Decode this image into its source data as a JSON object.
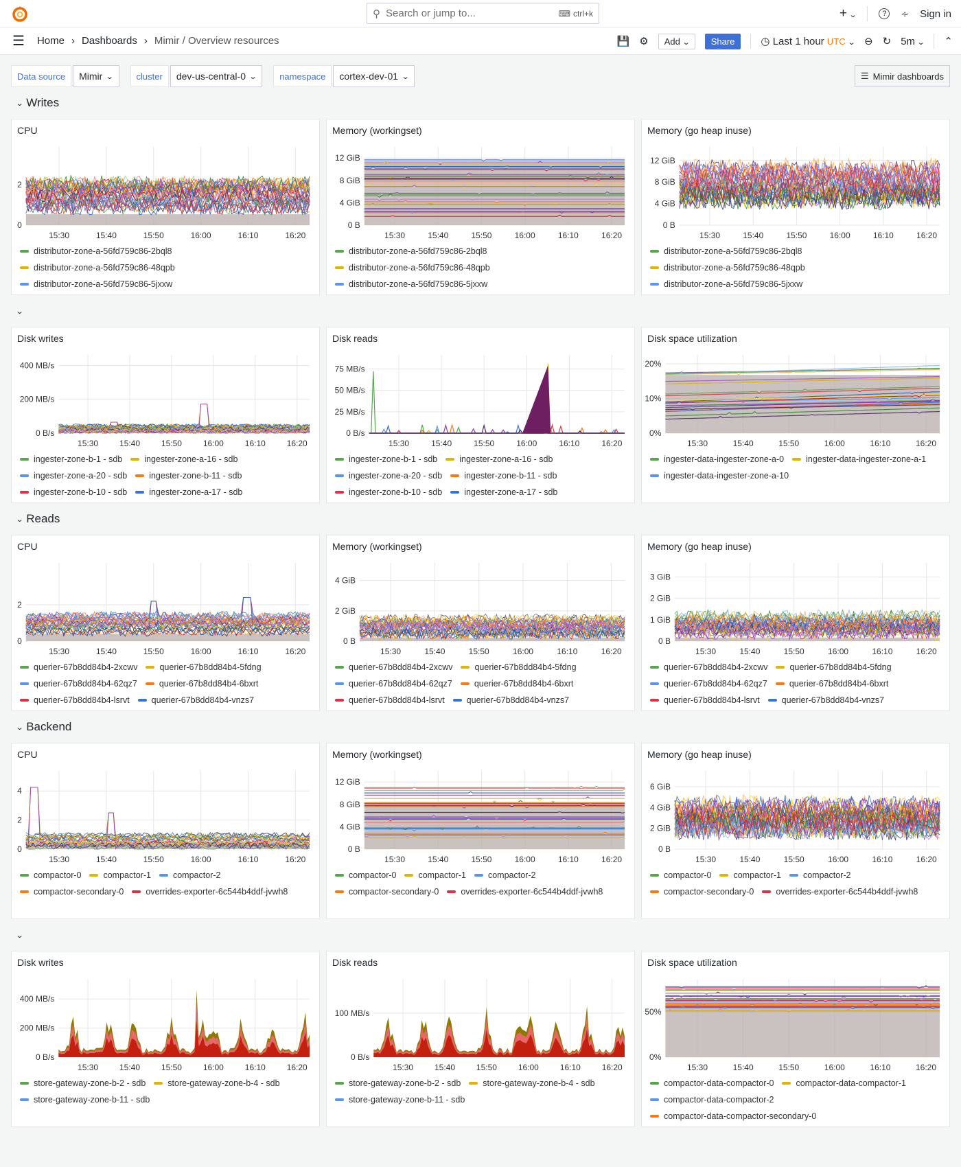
{
  "header": {
    "search_placeholder": "Search or jump to...",
    "search_shortcut": "ctrl+k",
    "new_label": "+",
    "sign_in": "Sign in"
  },
  "nav": {
    "breadcrumbs": [
      "Home",
      "Dashboards",
      "Mimir / Overview resources"
    ],
    "add_label": "Add",
    "share_label": "Share",
    "time_range": "Last 1 hour",
    "timezone": "UTC",
    "refresh_interval": "5m"
  },
  "variables": [
    {
      "label": "Data source",
      "value": "Mimir"
    },
    {
      "label": "cluster",
      "value": "dev-us-central-0"
    },
    {
      "label": "namespace",
      "value": "cortex-dev-01"
    }
  ],
  "dashboards_button": "Mimir dashboards",
  "colors": {
    "accent": "#3d71d9",
    "timezone": "#ff780a",
    "legend": [
      "#56a64b",
      "#e0b400",
      "#5794f2",
      "#ff780a",
      "#e02f44",
      "#3274d9"
    ]
  },
  "x_ticks": [
    "15:30",
    "15:40",
    "15:50",
    "16:00",
    "16:10",
    "16:20"
  ],
  "sections": [
    {
      "title": "Writes",
      "panels": [
        {
          "title": "CPU",
          "y_max": 3.6,
          "y_ticks": [
            {
              "label": "0",
              "value": 0
            },
            {
              "label": "2",
              "value": 2
            }
          ],
          "legend": [
            "distributor-zone-a-56fd759c86-2bql8",
            "distributor-zone-a-56fd759c86-48qpb",
            "distributor-zone-a-56fd759c86-5jxxw"
          ]
        },
        {
          "title": "Memory (workingset)",
          "y_max": 13,
          "y_ticks": [
            {
              "label": "0 B",
              "value": 0
            },
            {
              "label": "4 GiB",
              "value": 4
            },
            {
              "label": "8 GiB",
              "value": 8
            },
            {
              "label": "12 GiB",
              "value": 12
            }
          ],
          "legend": [
            "distributor-zone-a-56fd759c86-2bql8",
            "distributor-zone-a-56fd759c86-48qpb",
            "distributor-zone-a-56fd759c86-5jxxw"
          ]
        },
        {
          "title": "Memory (go heap inuse)",
          "y_max": 13.5,
          "y_ticks": [
            {
              "label": "0 B",
              "value": 0
            },
            {
              "label": "4 GiB",
              "value": 4
            },
            {
              "label": "8 GiB",
              "value": 8
            },
            {
              "label": "12 GiB",
              "value": 12
            }
          ],
          "legend": [
            "distributor-zone-a-56fd759c86-2bql8",
            "distributor-zone-a-56fd759c86-48qpb",
            "distributor-zone-a-56fd759c86-5jxxw"
          ]
        }
      ]
    },
    {
      "title": "",
      "panels": [
        {
          "title": "Disk writes",
          "y_max": 430,
          "y_ticks": [
            {
              "label": "0 B/s",
              "value": 0
            },
            {
              "label": "200 MB/s",
              "value": 200
            },
            {
              "label": "400 MB/s",
              "value": 400
            }
          ],
          "legend": [
            "ingester-zone-b-1 - sdb",
            "ingester-zone-a-16 - sdb",
            "ingester-zone-a-20 - sdb",
            "ingester-zone-b-11 - sdb",
            "ingester-zone-b-10 - sdb",
            "ingester-zone-a-17 - sdb"
          ]
        },
        {
          "title": "Disk reads",
          "y_max": 85,
          "y_ticks": [
            {
              "label": "0 B/s",
              "value": 0
            },
            {
              "label": "25 MB/s",
              "value": 25
            },
            {
              "label": "50 MB/s",
              "value": 50
            },
            {
              "label": "75 MB/s",
              "value": 75
            }
          ],
          "legend": [
            "ingester-zone-b-1 - sdb",
            "ingester-zone-a-16 - sdb",
            "ingester-zone-a-20 - sdb",
            "ingester-zone-b-11 - sdb",
            "ingester-zone-b-10 - sdb",
            "ingester-zone-a-17 - sdb"
          ]
        },
        {
          "title": "Disk space utilization",
          "y_max": 21,
          "y_ticks": [
            {
              "label": "0%",
              "value": 0
            },
            {
              "label": "10%",
              "value": 10
            },
            {
              "label": "20%",
              "value": 20
            }
          ],
          "legend": [
            "ingester-data-ingester-zone-a-0",
            "ingester-data-ingester-zone-a-1",
            "ingester-data-ingester-zone-a-10"
          ]
        }
      ]
    },
    {
      "title": "Reads",
      "panels": [
        {
          "title": "CPU",
          "y_max": 4,
          "y_ticks": [
            {
              "label": "0",
              "value": 0
            },
            {
              "label": "2",
              "value": 2
            }
          ],
          "legend": [
            "querier-67b8dd84b4-2xcwv",
            "querier-67b8dd84b4-5fdng",
            "querier-67b8dd84b4-62qz7",
            "querier-67b8dd84b4-6bxrt",
            "querier-67b8dd84b4-lsrvt",
            "querier-67b8dd84b4-vnzs7"
          ]
        },
        {
          "title": "Memory (workingset)",
          "y_max": 4.8,
          "y_ticks": [
            {
              "label": "0 B",
              "value": 0
            },
            {
              "label": "2 GiB",
              "value": 2
            },
            {
              "label": "4 GiB",
              "value": 4
            }
          ],
          "legend": [
            "querier-67b8dd84b4-2xcwv",
            "querier-67b8dd84b4-5fdng",
            "querier-67b8dd84b4-62qz7",
            "querier-67b8dd84b4-6bxrt",
            "querier-67b8dd84b4-lsrvt",
            "querier-67b8dd84b4-vnzs7"
          ]
        },
        {
          "title": "Memory (go heap inuse)",
          "y_max": 3.4,
          "y_ticks": [
            {
              "label": "0 B",
              "value": 0
            },
            {
              "label": "1 GiB",
              "value": 1
            },
            {
              "label": "2 GiB",
              "value": 2
            },
            {
              "label": "3 GiB",
              "value": 3
            }
          ],
          "legend": [
            "querier-67b8dd84b4-2xcwv",
            "querier-67b8dd84b4-5fdng",
            "querier-67b8dd84b4-62qz7",
            "querier-67b8dd84b4-6bxrt",
            "querier-67b8dd84b4-lsrvt",
            "querier-67b8dd84b4-vnzs7"
          ]
        }
      ]
    },
    {
      "title": "Backend",
      "panels": [
        {
          "title": "CPU",
          "y_max": 5,
          "y_ticks": [
            {
              "label": "0",
              "value": 0
            },
            {
              "label": "2",
              "value": 2
            },
            {
              "label": "4",
              "value": 4
            }
          ],
          "legend": [
            "compactor-0",
            "compactor-1",
            "compactor-2",
            "compactor-secondary-0",
            "overrides-exporter-6c544b4ddf-jvwh8"
          ]
        },
        {
          "title": "Memory (workingset)",
          "y_max": 13,
          "y_ticks": [
            {
              "label": "0 B",
              "value": 0
            },
            {
              "label": "4 GiB",
              "value": 4
            },
            {
              "label": "8 GiB",
              "value": 8
            },
            {
              "label": "12 GiB",
              "value": 12
            }
          ],
          "legend": [
            "compactor-0",
            "compactor-1",
            "compactor-2",
            "compactor-secondary-0",
            "overrides-exporter-6c544b4ddf-jvwh8"
          ]
        },
        {
          "title": "Memory (go heap inuse)",
          "y_max": 7,
          "y_ticks": [
            {
              "label": "0 B",
              "value": 0
            },
            {
              "label": "2 GiB",
              "value": 2
            },
            {
              "label": "4 GiB",
              "value": 4
            },
            {
              "label": "6 GiB",
              "value": 6
            }
          ],
          "legend": [
            "compactor-0",
            "compactor-1",
            "compactor-2",
            "compactor-secondary-0",
            "overrides-exporter-6c544b4ddf-jvwh8"
          ]
        }
      ]
    },
    {
      "title": "",
      "panels": [
        {
          "title": "Disk writes",
          "y_max": 500,
          "y_ticks": [
            {
              "label": "0 B/s",
              "value": 0
            },
            {
              "label": "200 MB/s",
              "value": 200
            },
            {
              "label": "400 MB/s",
              "value": 400
            }
          ],
          "legend": [
            "store-gateway-zone-b-2 - sdb",
            "store-gateway-zone-b-4 - sdb",
            "store-gateway-zone-b-11 - sdb"
          ]
        },
        {
          "title": "Disk reads",
          "y_max": 165,
          "y_ticks": [
            {
              "label": "0 B/s",
              "value": 0
            },
            {
              "label": "100 MB/s",
              "value": 100
            }
          ],
          "legend": [
            "store-gateway-zone-b-2 - sdb",
            "store-gateway-zone-b-4 - sdb",
            "store-gateway-zone-b-11 - sdb"
          ]
        },
        {
          "title": "Disk space utilization",
          "y_max": 80,
          "y_ticks": [
            {
              "label": "0%",
              "value": 0
            },
            {
              "label": "50%",
              "value": 50
            }
          ],
          "legend": [
            "compactor-data-compactor-0",
            "compactor-data-compactor-1",
            "compactor-data-compactor-2",
            "compactor-data-compactor-secondary-0"
          ]
        }
      ]
    }
  ]
}
